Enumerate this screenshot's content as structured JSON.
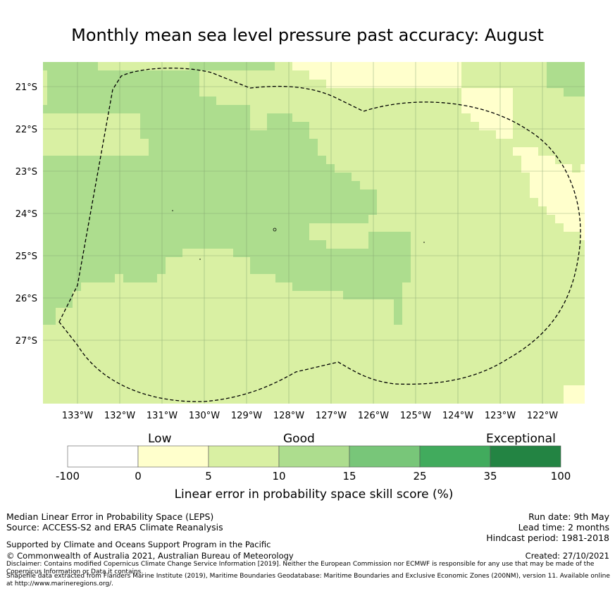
{
  "title": "Monthly mean sea level pressure past accuracy: August",
  "map": {
    "lat_labels": [
      "21°S",
      "22°S",
      "23°S",
      "24°S",
      "25°S",
      "26°S",
      "27°S"
    ],
    "lon_labels": [
      "133°W",
      "132°W",
      "131°W",
      "130°W",
      "129°W",
      "128°W",
      "127°W",
      "126°W",
      "125°W",
      "124°W",
      "123°W",
      "122°W"
    ],
    "boundary": "Exclusive Economic Zone (dashed)"
  },
  "colorbar": {
    "categories": [
      "Low",
      "Good",
      "Exceptional"
    ],
    "ticks": [
      "-100",
      "0",
      "5",
      "10",
      "15",
      "25",
      "35",
      "100"
    ],
    "colors": [
      "#ffffff",
      "#ffffcc",
      "#d9f0a3",
      "#addd8e",
      "#78c679",
      "#41ab5d",
      "#238443"
    ],
    "label": "Linear error in probability space skill score (%)"
  },
  "footer": {
    "line1": "Median Linear Error in Probability Space (LEPS)",
    "line2": "Source: ACCESS-S2 and ERA5 Climate Reanalysis",
    "support": "Supported by Climate and Oceans Support Program in the Pacific",
    "copyright": "© Commonwealth of Australia 2021, Australian Bureau of Meteorology",
    "run_date": "Run date: 9th May",
    "lead_time": "Lead time: 2 months",
    "hindcast": "Hindcast period: 1981-2018",
    "created": "Created: 27/10/2021",
    "disclaimer": "Disclaimer: Contains modified Copernicus Climate Change Service Information [2019]. Neither the European Commission nor ECMWF is responsible for any use that may be made of the Copernicus Information or Data it contains.",
    "shapefile": "Shapefile data extracted from Flanders Marine Institute (2019), Maritime Boundaries Geodatabase: Maritime Boundaries and Exclusive Economic Zones (200NM), version 11. Available online at http://www.marineregions.org/."
  }
}
